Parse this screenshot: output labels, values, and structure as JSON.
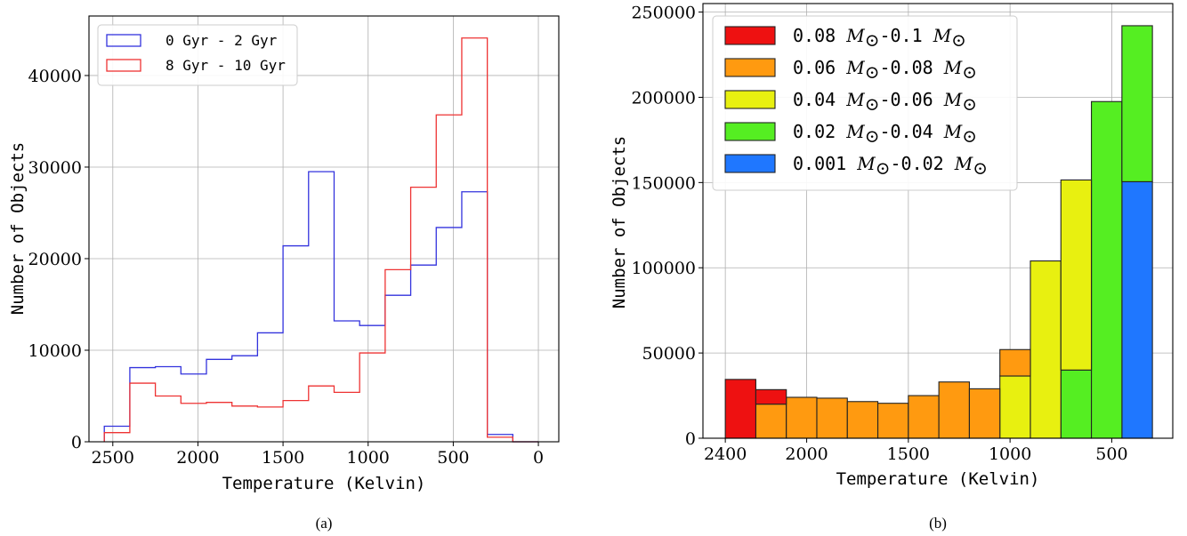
{
  "chart_data": [
    {
      "type": "histogram",
      "caption": "(a)",
      "xlabel": "Temperature (Kelvin)",
      "ylabel": "Number of Objects",
      "xlim": [
        2640,
        -120
      ],
      "ylim": [
        0,
        46500
      ],
      "x_ticks": [
        2500,
        2000,
        1500,
        1000,
        500,
        0
      ],
      "y_ticks": [
        0,
        10000,
        20000,
        30000,
        40000
      ],
      "grid": true,
      "legend_position": "top-left",
      "series": [
        {
          "name": "0 Gyr - 2 Gyr",
          "color": "#3333dd",
          "bin_edges": [
            2550,
            2400,
            2250,
            2100,
            1950,
            1800,
            1650,
            1500,
            1350,
            1200,
            1050,
            900,
            750,
            600,
            450,
            300,
            150,
            0
          ],
          "values": [
            1700,
            8100,
            8200,
            7400,
            9000,
            9400,
            11900,
            21400,
            29500,
            13200,
            12700,
            16000,
            19300,
            23400,
            27300,
            800,
            0
          ]
        },
        {
          "name": "8 Gyr - 10 Gyr",
          "color": "#ee3333",
          "bin_edges": [
            2550,
            2400,
            2250,
            2100,
            1950,
            1800,
            1650,
            1500,
            1350,
            1200,
            1050,
            900,
            750,
            600,
            450,
            300,
            150,
            0
          ],
          "values": [
            1000,
            6400,
            5000,
            4200,
            4300,
            3900,
            3800,
            4500,
            6100,
            5400,
            9700,
            18800,
            27800,
            35700,
            44100,
            500,
            0
          ]
        }
      ]
    },
    {
      "type": "stacked_histogram",
      "caption": "(b)",
      "xlabel": "Temperature (Kelvin)",
      "ylabel": "Number of Objects",
      "xlim": [
        2510,
        200
      ],
      "ylim": [
        0,
        255000
      ],
      "x_ticks": [
        2400,
        2000,
        1500,
        1000,
        500
      ],
      "y_ticks": [
        0,
        50000,
        100000,
        150000,
        200000,
        250000
      ],
      "grid": true,
      "legend_position": "top-left",
      "bin_edges": [
        2400,
        2250,
        2100,
        1950,
        1800,
        1650,
        1500,
        1350,
        1200,
        1050,
        900,
        750,
        600,
        450,
        300
      ],
      "series": [
        {
          "name_num": "0.001",
          "name_mid": "-0.02",
          "color": "#1f77ff",
          "values": [
            0,
            0,
            0,
            0,
            0,
            0,
            0,
            0,
            0,
            0,
            0,
            0,
            0,
            150500
          ]
        },
        {
          "name_num": "0.02",
          "name_mid": "-0.04",
          "color": "#55ee22",
          "values": [
            0,
            0,
            0,
            0,
            0,
            0,
            0,
            0,
            0,
            0,
            0,
            40000,
            197500,
            91500
          ]
        },
        {
          "name_num": "0.04",
          "name_mid": "-0.06",
          "color": "#e8f010",
          "values": [
            0,
            0,
            0,
            0,
            0,
            0,
            0,
            0,
            0,
            36500,
            104000,
            111500,
            0,
            0
          ]
        },
        {
          "name_num": "0.06",
          "name_mid": "-0.08",
          "color": "#ff9a10",
          "values": [
            0,
            20000,
            24000,
            23500,
            21500,
            20500,
            25000,
            33000,
            29000,
            15500,
            0,
            0,
            0,
            0
          ]
        },
        {
          "name_num": "0.08",
          "name_mid": "-0.1",
          "color": "#ee1111",
          "values": [
            34500,
            8500,
            0,
            0,
            0,
            0,
            0,
            0,
            0,
            0,
            0,
            0,
            0,
            0
          ]
        }
      ],
      "legend_order": [
        4,
        3,
        2,
        1,
        0
      ]
    }
  ]
}
